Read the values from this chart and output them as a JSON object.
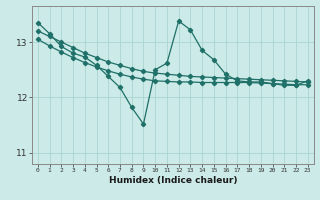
{
  "xlabel": "Humidex (Indice chaleur)",
  "ylabel": "",
  "background_color": "#cceae7",
  "grid_color": "#aad4d0",
  "line_color": "#1e7068",
  "x_values": [
    0,
    1,
    2,
    3,
    4,
    5,
    6,
    7,
    8,
    9,
    10,
    11,
    12,
    13,
    14,
    15,
    16,
    17,
    18,
    19,
    20,
    21,
    22,
    23
  ],
  "series1": [
    13.35,
    13.15,
    12.92,
    12.8,
    12.73,
    12.58,
    12.38,
    12.18,
    11.82,
    11.52,
    12.5,
    12.62,
    13.38,
    13.22,
    12.85,
    12.68,
    12.42,
    12.3,
    12.28,
    12.28,
    12.25,
    12.22,
    12.22,
    12.3
  ],
  "series2_linear1": [
    13.2,
    13.1,
    13.0,
    12.9,
    12.8,
    12.72,
    12.64,
    12.58,
    12.52,
    12.47,
    12.44,
    12.42,
    12.4,
    12.38,
    12.37,
    12.36,
    12.35,
    12.34,
    12.33,
    12.32,
    12.31,
    12.3,
    12.29,
    12.28
  ],
  "series2_linear2": [
    13.05,
    12.93,
    12.82,
    12.72,
    12.63,
    12.55,
    12.48,
    12.42,
    12.37,
    12.33,
    12.3,
    12.29,
    12.28,
    12.28,
    12.27,
    12.27,
    12.27,
    12.27,
    12.27,
    12.26,
    12.25,
    12.24,
    12.23,
    12.23
  ],
  "ylim": [
    10.8,
    13.65
  ],
  "yticks": [
    11,
    12,
    13
  ],
  "xlim": [
    -0.5,
    23.5
  ]
}
